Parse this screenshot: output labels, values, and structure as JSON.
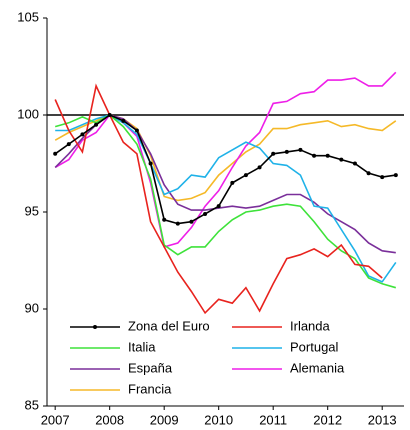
{
  "chart_data": {
    "type": "line",
    "x": [
      2007,
      2007.25,
      2007.5,
      2007.75,
      2008,
      2008.25,
      2008.5,
      2008.75,
      2009,
      2009.25,
      2009.5,
      2009.75,
      2010,
      2010.25,
      2010.5,
      2010.75,
      2011,
      2011.25,
      2011.5,
      2011.75,
      2012,
      2012.25,
      2012.5,
      2012.75,
      2013,
      2013.25
    ],
    "series": [
      {
        "name": "Zona del Euro",
        "color": "#000000",
        "markers": true,
        "values": [
          98.0,
          98.5,
          99.0,
          99.5,
          100,
          99.7,
          99.2,
          97.5,
          94.6,
          94.4,
          94.5,
          94.9,
          95.3,
          96.5,
          96.9,
          97.3,
          98.0,
          98.1,
          98.2,
          97.9,
          97.9,
          97.7,
          97.5,
          97.0,
          96.8,
          96.9
        ]
      },
      {
        "name": "Irlanda",
        "color": "#e8231e",
        "markers": false,
        "values": [
          100.8,
          99.2,
          98.1,
          101.5,
          100.0,
          98.6,
          98.0,
          94.5,
          93.2,
          91.9,
          90.9,
          89.8,
          90.5,
          90.3,
          91.1,
          89.9,
          91.3,
          92.6,
          92.8,
          93.1,
          92.7,
          93.3,
          92.3,
          92.2,
          91.6,
          null
        ]
      },
      {
        "name": "Italia",
        "color": "#3ee23a",
        "markers": false,
        "values": [
          99.4,
          99.6,
          99.9,
          99.6,
          100,
          99.4,
          98.5,
          96.7,
          93.3,
          92.8,
          93.2,
          93.2,
          94.0,
          94.6,
          95.0,
          95.1,
          95.3,
          95.4,
          95.3,
          94.5,
          93.6,
          93.0,
          92.6,
          91.6,
          91.3,
          91.1
        ]
      },
      {
        "name": "Portugal",
        "color": "#1fb2e8",
        "markers": false,
        "values": [
          99.2,
          99.2,
          99.5,
          99.8,
          100,
          99.6,
          99.0,
          97.5,
          95.9,
          96.2,
          96.9,
          96.8,
          97.8,
          98.2,
          98.6,
          98.3,
          97.5,
          97.4,
          96.9,
          95.3,
          95.2,
          94.1,
          93.0,
          91.7,
          91.4,
          92.4
        ]
      },
      {
        "name": "España",
        "color": "#7a2f9a",
        "markers": false,
        "values": [
          97.3,
          98.0,
          98.8,
          99.5,
          100,
          99.8,
          99.2,
          98.0,
          96.4,
          95.4,
          95.1,
          95.1,
          95.2,
          95.3,
          95.2,
          95.3,
          95.6,
          95.9,
          95.9,
          95.5,
          94.9,
          94.5,
          94.1,
          93.4,
          93.0,
          92.9
        ]
      },
      {
        "name": "Alemania",
        "color": "#ee1fe8",
        "markers": false,
        "values": [
          97.3,
          97.7,
          98.7,
          99.1,
          100,
          99.6,
          98.9,
          96.5,
          93.2,
          93.4,
          94.2,
          95.3,
          96.1,
          97.3,
          98.4,
          99.1,
          100.6,
          100.7,
          101.1,
          101.2,
          101.8,
          101.8,
          101.9,
          101.5,
          101.5,
          102.2
        ]
      },
      {
        "name": "Francia",
        "color": "#f5b928",
        "markers": false,
        "values": [
          98.7,
          99.1,
          99.4,
          99.7,
          100,
          99.8,
          99.3,
          97.9,
          95.8,
          95.6,
          95.7,
          96.0,
          96.9,
          97.5,
          98.1,
          98.5,
          99.3,
          99.3,
          99.5,
          99.6,
          99.7,
          99.4,
          99.5,
          99.3,
          99.2,
          99.7
        ]
      }
    ],
    "reference_line": 100,
    "xlim": [
      2006.85,
      2013.4
    ],
    "xticks": [
      2007,
      2008,
      2009,
      2010,
      2011,
      2012,
      2013
    ],
    "ylim": [
      85,
      105
    ],
    "yticks": [
      85,
      90,
      95,
      100,
      105
    ],
    "grid": false
  }
}
